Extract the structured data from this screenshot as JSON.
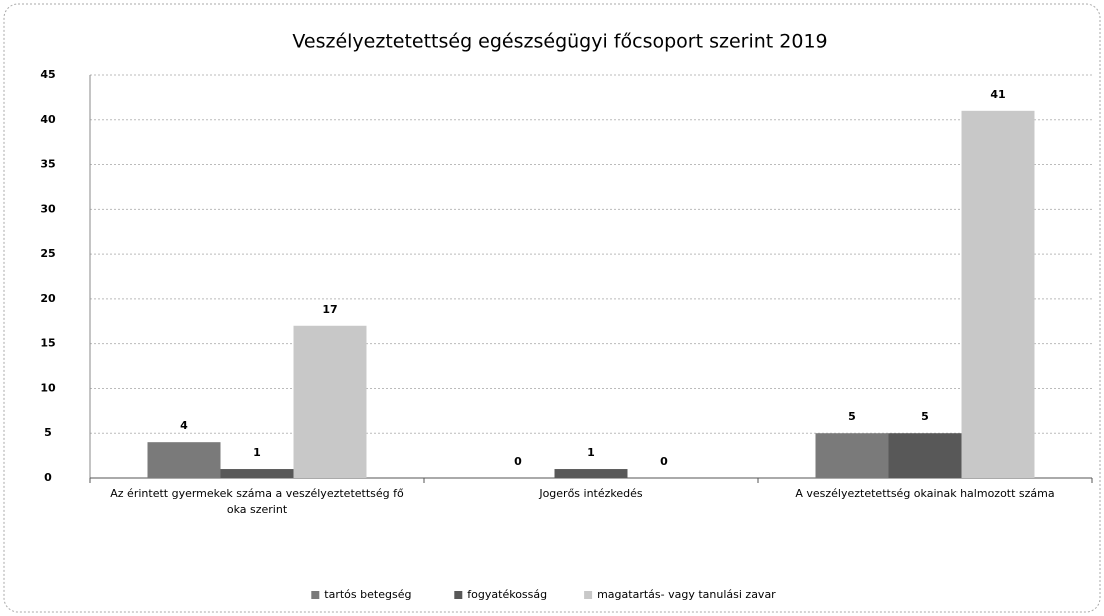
{
  "chart_data": {
    "type": "bar",
    "title": "Veszélyeztetettség egészségügyi főcsoport szerint 2019",
    "categories": [
      "Az érintett gyermekek száma a veszélyeztetettség fő oka szerint",
      "Jogerős intézkedés",
      "A veszélyeztetettség okainak halmozott száma"
    ],
    "series": [
      {
        "name": "tartós betegség",
        "color": "#7a7a7a",
        "values": [
          4,
          0,
          5
        ]
      },
      {
        "name": "fogyatékosság",
        "color": "#585858",
        "values": [
          1,
          1,
          5
        ]
      },
      {
        "name": "magatartás- vagy tanulási zavar",
        "color": "#c8c8c8",
        "values": [
          17,
          0,
          41
        ]
      }
    ],
    "ylim": [
      0,
      45
    ],
    "yticks": [
      0,
      5,
      10,
      15,
      20,
      25,
      30,
      35,
      40,
      45
    ],
    "grid": true,
    "legend": "bottom"
  }
}
